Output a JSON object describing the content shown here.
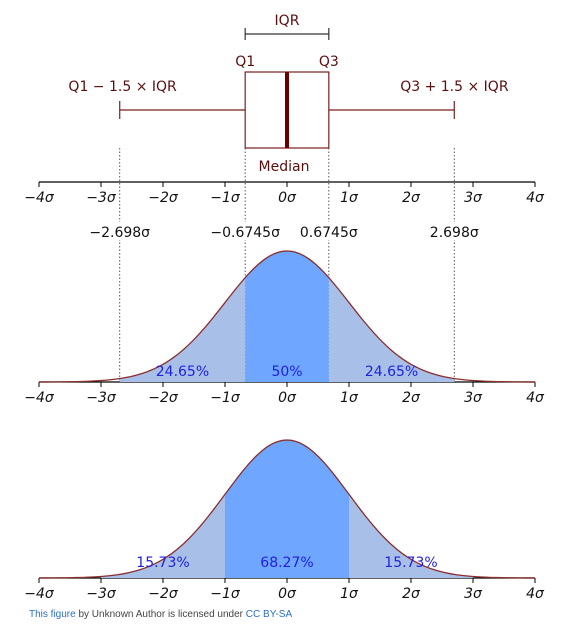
{
  "colors": {
    "box_line": "#7a1f1f",
    "median_line": "#6b0000",
    "curve_line": "#8b2e2e",
    "axis": "#000000",
    "light_fill": "#a8c0e8",
    "dark_fill": "#6fa6ff",
    "pct_text": "#1f1fe0",
    "label_text": "#5a0f0f",
    "link": "#2b6fc2"
  },
  "axis_ticks": [
    "−4σ",
    "−3σ",
    "−2σ",
    "−1σ",
    "0σ",
    "1σ",
    "2σ",
    "3σ",
    "4σ"
  ],
  "box_plot": {
    "iqr_label": "IQR",
    "q1_label": "Q1",
    "q3_label": "Q3",
    "lower_whisker_label": "Q1 − 1.5 × IQR",
    "upper_whisker_label": "Q3 + 1.5 × IQR",
    "median_label": "Median",
    "q1": -0.6745,
    "q3": 0.6745,
    "lower_whisker": -2.698,
    "upper_whisker": 2.698
  },
  "markers": [
    {
      "value": -2.698,
      "label": "−2.698σ"
    },
    {
      "value": -0.6745,
      "label": "−0.6745σ"
    },
    {
      "value": 0.6745,
      "label": "0.6745σ"
    },
    {
      "value": 2.698,
      "label": "2.698σ"
    }
  ],
  "panel1": {
    "bounds": [
      -2.698,
      -0.6745,
      0.6745,
      2.698
    ],
    "pct_left": "24.65%",
    "pct_center": "50%",
    "pct_right": "24.65%"
  },
  "panel2": {
    "bounds": [
      -3,
      -1,
      1,
      3
    ],
    "pct_left": "15.73%",
    "pct_center": "68.27%",
    "pct_right": "15.73%"
  },
  "caption": {
    "link1": "This figure",
    "middle": " by Unknown Author is licensed under ",
    "link2": "CC BY-SA"
  }
}
